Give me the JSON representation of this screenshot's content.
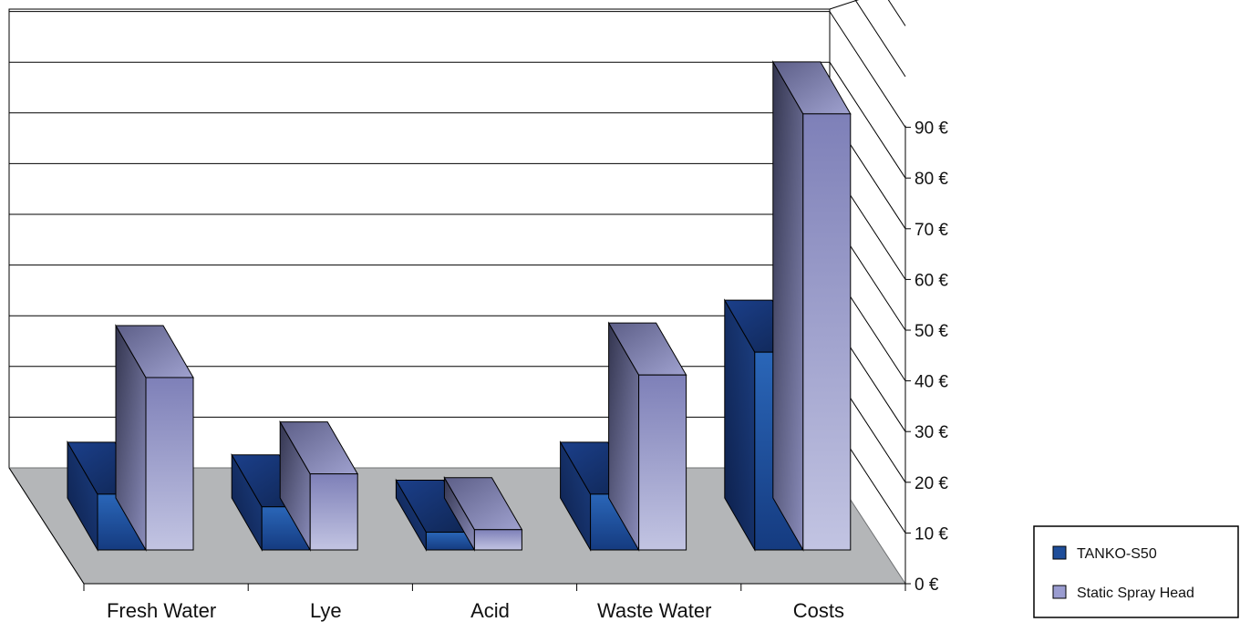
{
  "chart_data": {
    "type": "bar",
    "title": "",
    "xlabel": "",
    "ylabel": "",
    "categories": [
      "Fresh Water",
      "Lye",
      "Acid",
      "Waste Water",
      "Costs"
    ],
    "series": [
      {
        "name": "TANKO-S50",
        "values": [
          11,
          8.5,
          3.5,
          11,
          39
        ]
      },
      {
        "name": "Static Spray Head",
        "values": [
          34,
          15,
          4,
          34.5,
          86
        ]
      }
    ],
    "ylim": [
      0,
      90
    ],
    "yticks": [
      "0 €",
      "10 €",
      "20 €",
      "30 €",
      "40 €",
      "50 €",
      "60 €",
      "70 €",
      "80 €",
      "90 €"
    ],
    "ytick_values": [
      0,
      10,
      20,
      30,
      40,
      50,
      60,
      70,
      80,
      90
    ],
    "grid": true,
    "legend": "right",
    "colors": {
      "series1": "#1f4e9a",
      "series2": "#9a9cd0",
      "floor": "#b4b6b8"
    }
  }
}
